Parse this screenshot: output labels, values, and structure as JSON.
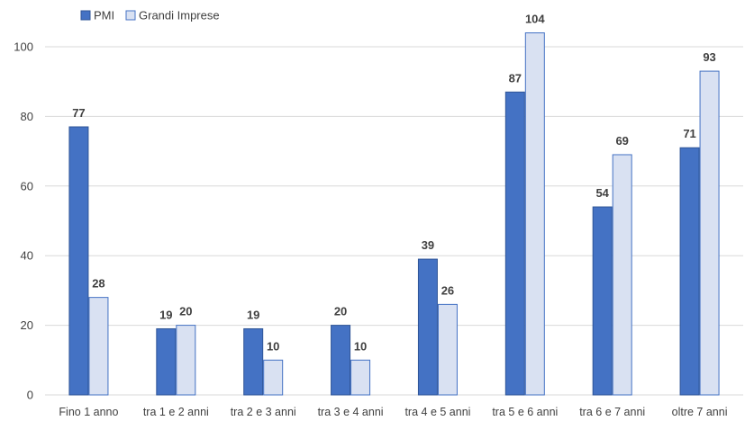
{
  "chart_data": {
    "type": "bar",
    "categories": [
      "Fino 1 anno",
      "tra 1 e 2 anni",
      "tra 2 e 3 anni",
      "tra 3 e 4 anni",
      "tra 4 e 5 anni",
      "tra 5 e 6 anni",
      "tra 6 e 7 anni",
      "oltre 7 anni"
    ],
    "series": [
      {
        "name": "PMI",
        "values": [
          77,
          19,
          19,
          20,
          39,
          87,
          54,
          71
        ],
        "color": "#4472C4",
        "stroke": "#2F5597"
      },
      {
        "name": "Grandi Imprese",
        "values": [
          28,
          20,
          10,
          10,
          26,
          104,
          69,
          93
        ],
        "color": "#D9E1F2",
        "stroke": "#4472C4"
      }
    ],
    "yticks": [
      0,
      20,
      40,
      60,
      80,
      100
    ],
    "ylim": [
      0,
      105
    ],
    "grid": true,
    "legend": "top-left",
    "gridColor": "#D9D9D9"
  }
}
